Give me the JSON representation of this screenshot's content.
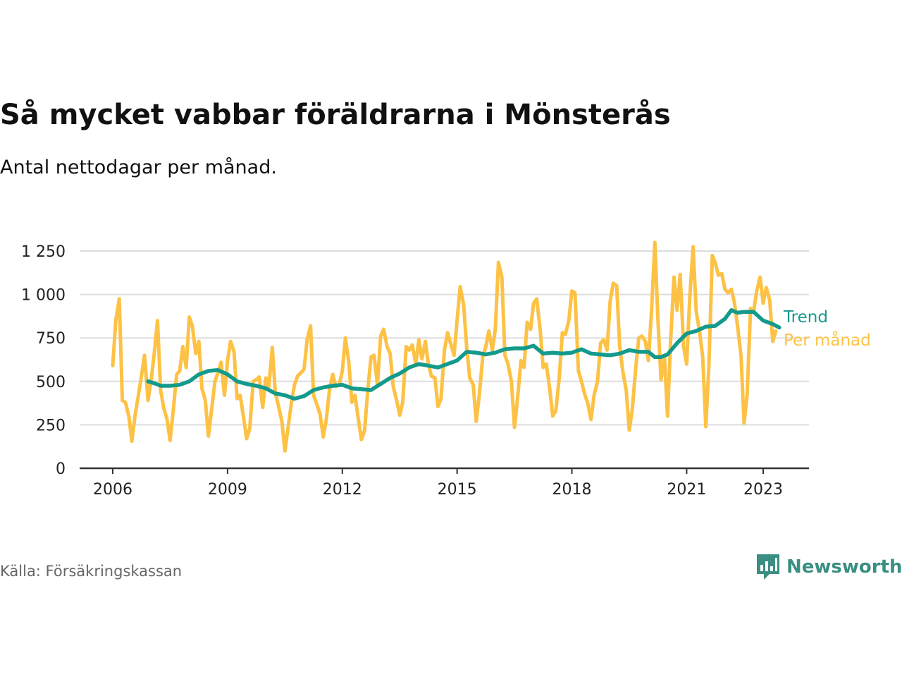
{
  "header": {
    "title": "Så mycket vabbar föräldrarna i Mönsterås",
    "subtitle": "Antal nettodagar per månad."
  },
  "footer": {
    "source": "Källa: Försäkringskassan",
    "brand": "Newsworthy",
    "brand_icon": "bar-chart-logo-icon"
  },
  "colors": {
    "monthly": "#fdc245",
    "trend": "#149a8c",
    "grid": "#dddddd",
    "axis": "#333333",
    "brand": "#3a8e82"
  },
  "chart_data": {
    "type": "line",
    "xlim": [
      2006,
      2023.5
    ],
    "ylim": [
      0,
      1250
    ],
    "x_ticks": [
      {
        "label": "2006",
        "value": 2006
      },
      {
        "label": "2009",
        "value": 2009
      },
      {
        "label": "2012",
        "value": 2012
      },
      {
        "label": "2015",
        "value": 2015
      },
      {
        "label": "2018",
        "value": 2018
      },
      {
        "label": "2021",
        "value": 2021
      },
      {
        "label": "2023",
        "value": 2023
      }
    ],
    "y_ticks": [
      {
        "label": "0",
        "value": 0
      },
      {
        "label": "250",
        "value": 250
      },
      {
        "label": "500",
        "value": 500
      },
      {
        "label": "750",
        "value": 750
      },
      {
        "label": "1 000",
        "value": 1000
      },
      {
        "label": "1 250",
        "value": 1250
      }
    ],
    "grid": true,
    "series": [
      {
        "name": "Per månad",
        "points": [
          [
            2006.0,
            590
          ],
          [
            2006.08,
            850
          ],
          [
            2006.17,
            975
          ],
          [
            2006.25,
            390
          ],
          [
            2006.33,
            380
          ],
          [
            2006.42,
            300
          ],
          [
            2006.5,
            155
          ],
          [
            2006.58,
            300
          ],
          [
            2006.67,
            420
          ],
          [
            2006.75,
            530
          ],
          [
            2006.83,
            650
          ],
          [
            2006.92,
            390
          ],
          [
            2007.0,
            500
          ],
          [
            2007.08,
            650
          ],
          [
            2007.17,
            850
          ],
          [
            2007.25,
            450
          ],
          [
            2007.33,
            350
          ],
          [
            2007.42,
            280
          ],
          [
            2007.5,
            160
          ],
          [
            2007.58,
            330
          ],
          [
            2007.67,
            540
          ],
          [
            2007.75,
            560
          ],
          [
            2007.83,
            700
          ],
          [
            2007.92,
            580
          ],
          [
            2008.0,
            870
          ],
          [
            2008.08,
            820
          ],
          [
            2008.17,
            660
          ],
          [
            2008.25,
            730
          ],
          [
            2008.33,
            460
          ],
          [
            2008.42,
            390
          ],
          [
            2008.5,
            185
          ],
          [
            2008.58,
            330
          ],
          [
            2008.67,
            500
          ],
          [
            2008.75,
            550
          ],
          [
            2008.83,
            610
          ],
          [
            2008.92,
            420
          ],
          [
            2009.0,
            620
          ],
          [
            2009.08,
            730
          ],
          [
            2009.17,
            670
          ],
          [
            2009.25,
            400
          ],
          [
            2009.33,
            420
          ],
          [
            2009.42,
            290
          ],
          [
            2009.5,
            170
          ],
          [
            2009.58,
            230
          ],
          [
            2009.67,
            500
          ],
          [
            2009.75,
            510
          ],
          [
            2009.83,
            525
          ],
          [
            2009.92,
            350
          ],
          [
            2010.0,
            520
          ],
          [
            2010.08,
            470
          ],
          [
            2010.17,
            695
          ],
          [
            2010.25,
            430
          ],
          [
            2010.33,
            360
          ],
          [
            2010.42,
            270
          ],
          [
            2010.5,
            100
          ],
          [
            2010.58,
            230
          ],
          [
            2010.67,
            380
          ],
          [
            2010.75,
            480
          ],
          [
            2010.83,
            530
          ],
          [
            2010.92,
            550
          ],
          [
            2011.0,
            570
          ],
          [
            2011.08,
            740
          ],
          [
            2011.17,
            820
          ],
          [
            2011.25,
            420
          ],
          [
            2011.33,
            370
          ],
          [
            2011.42,
            310
          ],
          [
            2011.5,
            180
          ],
          [
            2011.58,
            280
          ],
          [
            2011.67,
            460
          ],
          [
            2011.75,
            540
          ],
          [
            2011.83,
            470
          ],
          [
            2011.92,
            480
          ],
          [
            2012.0,
            560
          ],
          [
            2012.08,
            750
          ],
          [
            2012.17,
            610
          ],
          [
            2012.25,
            380
          ],
          [
            2012.33,
            420
          ],
          [
            2012.42,
            280
          ],
          [
            2012.5,
            165
          ],
          [
            2012.58,
            215
          ],
          [
            2012.67,
            460
          ],
          [
            2012.75,
            640
          ],
          [
            2012.83,
            650
          ],
          [
            2012.92,
            480
          ],
          [
            2013.0,
            760
          ],
          [
            2013.08,
            800
          ],
          [
            2013.17,
            700
          ],
          [
            2013.25,
            660
          ],
          [
            2013.33,
            470
          ],
          [
            2013.42,
            390
          ],
          [
            2013.5,
            305
          ],
          [
            2013.58,
            380
          ],
          [
            2013.67,
            700
          ],
          [
            2013.75,
            680
          ],
          [
            2013.83,
            710
          ],
          [
            2013.92,
            600
          ],
          [
            2014.0,
            740
          ],
          [
            2014.08,
            630
          ],
          [
            2014.17,
            730
          ],
          [
            2014.25,
            600
          ],
          [
            2014.33,
            530
          ],
          [
            2014.42,
            520
          ],
          [
            2014.5,
            355
          ],
          [
            2014.58,
            400
          ],
          [
            2014.67,
            680
          ],
          [
            2014.75,
            780
          ],
          [
            2014.83,
            720
          ],
          [
            2014.92,
            650
          ],
          [
            2015.0,
            850
          ],
          [
            2015.08,
            1045
          ],
          [
            2015.17,
            940
          ],
          [
            2015.25,
            700
          ],
          [
            2015.33,
            520
          ],
          [
            2015.42,
            480
          ],
          [
            2015.5,
            270
          ],
          [
            2015.58,
            420
          ],
          [
            2015.67,
            640
          ],
          [
            2015.75,
            700
          ],
          [
            2015.83,
            790
          ],
          [
            2015.92,
            680
          ],
          [
            2016.0,
            800
          ],
          [
            2016.08,
            1185
          ],
          [
            2016.17,
            1100
          ],
          [
            2016.25,
            650
          ],
          [
            2016.33,
            600
          ],
          [
            2016.42,
            500
          ],
          [
            2016.5,
            235
          ],
          [
            2016.58,
            400
          ],
          [
            2016.67,
            620
          ],
          [
            2016.75,
            580
          ],
          [
            2016.83,
            840
          ],
          [
            2016.92,
            800
          ],
          [
            2017.0,
            950
          ],
          [
            2017.08,
            975
          ],
          [
            2017.17,
            800
          ],
          [
            2017.25,
            580
          ],
          [
            2017.33,
            600
          ],
          [
            2017.42,
            460
          ],
          [
            2017.5,
            300
          ],
          [
            2017.58,
            330
          ],
          [
            2017.67,
            520
          ],
          [
            2017.75,
            780
          ],
          [
            2017.83,
            770
          ],
          [
            2017.92,
            850
          ],
          [
            2018.0,
            1020
          ],
          [
            2018.08,
            1010
          ],
          [
            2018.17,
            560
          ],
          [
            2018.25,
            500
          ],
          [
            2018.33,
            430
          ],
          [
            2018.42,
            370
          ],
          [
            2018.5,
            280
          ],
          [
            2018.58,
            420
          ],
          [
            2018.67,
            500
          ],
          [
            2018.75,
            720
          ],
          [
            2018.83,
            740
          ],
          [
            2018.92,
            680
          ],
          [
            2019.0,
            960
          ],
          [
            2019.08,
            1065
          ],
          [
            2019.17,
            1050
          ],
          [
            2019.25,
            700
          ],
          [
            2019.33,
            560
          ],
          [
            2019.42,
            450
          ],
          [
            2019.5,
            220
          ],
          [
            2019.58,
            340
          ],
          [
            2019.67,
            580
          ],
          [
            2019.75,
            750
          ],
          [
            2019.83,
            760
          ],
          [
            2019.92,
            730
          ],
          [
            2020.0,
            620
          ],
          [
            2020.08,
            900
          ],
          [
            2020.17,
            1300
          ],
          [
            2020.25,
            850
          ],
          [
            2020.33,
            510
          ],
          [
            2020.42,
            640
          ],
          [
            2020.5,
            300
          ],
          [
            2020.58,
            730
          ],
          [
            2020.67,
            1100
          ],
          [
            2020.75,
            910
          ],
          [
            2020.83,
            1115
          ],
          [
            2020.92,
            700
          ],
          [
            2021.0,
            600
          ],
          [
            2021.08,
            980
          ],
          [
            2021.17,
            1275
          ],
          [
            2021.25,
            900
          ],
          [
            2021.33,
            800
          ],
          [
            2021.42,
            640
          ],
          [
            2021.5,
            240
          ],
          [
            2021.58,
            580
          ],
          [
            2021.67,
            1225
          ],
          [
            2021.75,
            1180
          ],
          [
            2021.83,
            1110
          ],
          [
            2021.92,
            1120
          ],
          [
            2022.0,
            1030
          ],
          [
            2022.08,
            1010
          ],
          [
            2022.17,
            1030
          ],
          [
            2022.25,
            950
          ],
          [
            2022.33,
            820
          ],
          [
            2022.42,
            650
          ],
          [
            2022.5,
            260
          ],
          [
            2022.58,
            420
          ],
          [
            2022.67,
            920
          ],
          [
            2022.75,
            900
          ],
          [
            2022.83,
            1020
          ],
          [
            2022.92,
            1100
          ],
          [
            2023.0,
            950
          ],
          [
            2023.08,
            1040
          ],
          [
            2023.17,
            970
          ],
          [
            2023.25,
            730
          ],
          [
            2023.33,
            790
          ]
        ]
      },
      {
        "name": "Trend",
        "points": [
          [
            2006.92,
            500
          ],
          [
            2007.08,
            490
          ],
          [
            2007.25,
            475
          ],
          [
            2007.5,
            475
          ],
          [
            2007.75,
            480
          ],
          [
            2008.0,
            500
          ],
          [
            2008.25,
            540
          ],
          [
            2008.5,
            560
          ],
          [
            2008.75,
            565
          ],
          [
            2009.0,
            540
          ],
          [
            2009.25,
            500
          ],
          [
            2009.5,
            485
          ],
          [
            2009.75,
            475
          ],
          [
            2010.0,
            460
          ],
          [
            2010.25,
            430
          ],
          [
            2010.5,
            420
          ],
          [
            2010.75,
            400
          ],
          [
            2011.0,
            415
          ],
          [
            2011.25,
            450
          ],
          [
            2011.5,
            465
          ],
          [
            2011.75,
            475
          ],
          [
            2012.0,
            480
          ],
          [
            2012.25,
            460
          ],
          [
            2012.5,
            455
          ],
          [
            2012.75,
            450
          ],
          [
            2013.0,
            485
          ],
          [
            2013.25,
            520
          ],
          [
            2013.5,
            545
          ],
          [
            2013.75,
            580
          ],
          [
            2014.0,
            600
          ],
          [
            2014.25,
            590
          ],
          [
            2014.5,
            580
          ],
          [
            2014.75,
            600
          ],
          [
            2015.0,
            620
          ],
          [
            2015.25,
            670
          ],
          [
            2015.5,
            665
          ],
          [
            2015.75,
            655
          ],
          [
            2016.0,
            665
          ],
          [
            2016.25,
            685
          ],
          [
            2016.5,
            690
          ],
          [
            2016.75,
            690
          ],
          [
            2017.0,
            705
          ],
          [
            2017.25,
            660
          ],
          [
            2017.5,
            665
          ],
          [
            2017.75,
            660
          ],
          [
            2018.0,
            665
          ],
          [
            2018.25,
            685
          ],
          [
            2018.5,
            660
          ],
          [
            2018.75,
            655
          ],
          [
            2019.0,
            650
          ],
          [
            2019.25,
            660
          ],
          [
            2019.5,
            680
          ],
          [
            2019.75,
            670
          ],
          [
            2020.0,
            670
          ],
          [
            2020.17,
            640
          ],
          [
            2020.33,
            640
          ],
          [
            2020.5,
            655
          ],
          [
            2020.75,
            720
          ],
          [
            2021.0,
            775
          ],
          [
            2021.25,
            790
          ],
          [
            2021.5,
            815
          ],
          [
            2021.75,
            820
          ],
          [
            2022.0,
            860
          ],
          [
            2022.17,
            910
          ],
          [
            2022.33,
            895
          ],
          [
            2022.5,
            900
          ],
          [
            2022.75,
            900
          ],
          [
            2023.0,
            850
          ],
          [
            2023.25,
            830
          ],
          [
            2023.42,
            810
          ]
        ]
      }
    ]
  }
}
